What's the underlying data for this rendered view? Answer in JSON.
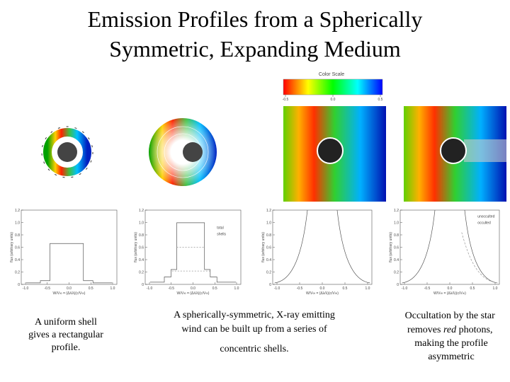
{
  "title": [
    "Emission Profiles from a Spherically",
    "Symmetric, Expanding Medium"
  ],
  "color_scale": {
    "title": "Color Scale",
    "xticks": [
      {
        "value": -0.5,
        "label": "-0.5"
      },
      {
        "value": 0,
        "label": "0.0"
      },
      {
        "value": 0.5,
        "label": "0.5"
      }
    ]
  },
  "plot_axes": {
    "xticks": [
      {
        "value": -1,
        "label": "-1.0"
      },
      {
        "value": -0.5,
        "label": "-0.5"
      },
      {
        "value": 0,
        "label": "0.0"
      },
      {
        "value": 0.5,
        "label": "0.5"
      },
      {
        "value": 1,
        "label": "1.0"
      }
    ],
    "yticks": [
      0,
      0.2,
      0.4,
      0.6,
      0.8,
      {
        "value": 1,
        "label": "1.0"
      },
      1.2
    ],
    "xlabel": "W/V∞ = (Δλ/λ)(c/V∞)",
    "ylabel": "flux (arbitrary units)"
  },
  "legends": [
    [
      "total",
      "shells"
    ],
    [
      "unocculted",
      "occulted"
    ]
  ],
  "captions": [
    [
      "A uniform shell",
      "gives a rectangular",
      "profile."
    ],
    [
      "A spherically-symmetric, X-ray emitting",
      "wind can be built up from a series of",
      "concentric shells."
    ],
    [
      "Occultation by the star",
      "removes ",
      "red",
      " photons,",
      "making the profile",
      "asymmetric"
    ]
  ]
}
